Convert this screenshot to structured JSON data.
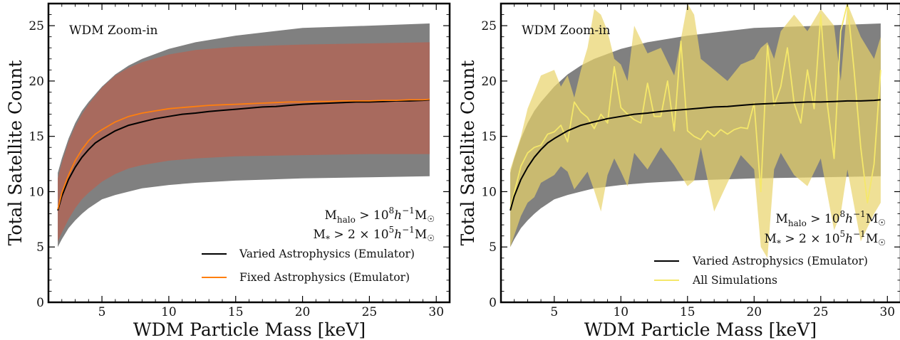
{
  "chart_data": [
    {
      "type": "line",
      "panel_label": "WDM Zoom-in",
      "xlabel": "WDM Particle Mass [keV]",
      "ylabel": "Total Satellite Count",
      "xlim": [
        1,
        31
      ],
      "ylim": [
        0,
        27
      ],
      "xticks": [
        5,
        10,
        15,
        20,
        25,
        30
      ],
      "yticks": [
        0,
        5,
        10,
        15,
        20,
        25
      ],
      "cuts": [
        "Mhalo > 10^8 h^-1 M☉",
        "M* > 2 × 10^5 h^-1 M☉"
      ],
      "legend_position": "lower-right",
      "bands": [
        {
          "color": "#808080",
          "x": [
            1.7,
            2,
            2.5,
            3,
            3.5,
            4,
            5,
            6,
            7,
            8,
            10,
            12,
            15,
            20,
            25,
            29.5
          ],
          "lower": [
            5.0,
            5.7,
            6.7,
            7.4,
            8.0,
            8.5,
            9.3,
            9.7,
            10.0,
            10.3,
            10.6,
            10.8,
            11.0,
            11.2,
            11.3,
            11.4
          ],
          "upper": [
            11.7,
            13.0,
            14.8,
            16.2,
            17.3,
            18.1,
            19.5,
            20.6,
            21.4,
            22.0,
            22.9,
            23.5,
            24.1,
            24.8,
            25.0,
            25.2
          ]
        },
        {
          "color": "#a86a5e",
          "x": [
            1.7,
            2,
            2.5,
            3,
            3.5,
            4,
            5,
            6,
            7,
            8,
            10,
            12,
            15,
            20,
            25,
            29.5
          ],
          "lower": [
            5.5,
            6.3,
            7.5,
            8.5,
            9.3,
            9.9,
            10.9,
            11.6,
            12.1,
            12.4,
            12.8,
            13.0,
            13.2,
            13.3,
            13.4,
            13.4
          ],
          "upper": [
            11.2,
            12.6,
            14.5,
            15.9,
            17.0,
            17.9,
            19.4,
            20.5,
            21.2,
            21.7,
            22.4,
            22.8,
            23.1,
            23.3,
            23.4,
            23.5
          ]
        }
      ],
      "series": [
        {
          "name": "Varied Astrophysics (Emulator)",
          "color": "#000000",
          "x": [
            1.7,
            2,
            2.5,
            3,
            3.5,
            4,
            4.5,
            5,
            6,
            7,
            8,
            9,
            10,
            11,
            12,
            13,
            14,
            15,
            16,
            17,
            18,
            19,
            20,
            21,
            22,
            23,
            24,
            25,
            26,
            27,
            28,
            29,
            29.5
          ],
          "y": [
            8.3,
            9.6,
            11.1,
            12.2,
            13.1,
            13.8,
            14.4,
            14.8,
            15.5,
            16.0,
            16.3,
            16.6,
            16.8,
            17.0,
            17.1,
            17.25,
            17.35,
            17.45,
            17.55,
            17.65,
            17.7,
            17.8,
            17.9,
            17.95,
            18.0,
            18.05,
            18.1,
            18.1,
            18.15,
            18.2,
            18.2,
            18.25,
            18.3
          ]
        },
        {
          "name": "Fixed Astrophysics (Emulator)",
          "color": "#ff7f0e",
          "x": [
            1.7,
            2,
            2.5,
            3,
            3.5,
            4,
            4.5,
            5,
            6,
            7,
            8,
            9,
            10,
            11,
            12,
            13,
            14,
            15,
            16,
            17,
            18,
            19,
            20,
            21,
            22,
            23,
            24,
            25,
            26,
            27,
            28,
            29,
            29.5
          ],
          "y": [
            8.4,
            9.9,
            11.5,
            12.8,
            13.8,
            14.6,
            15.2,
            15.6,
            16.3,
            16.8,
            17.1,
            17.3,
            17.5,
            17.6,
            17.7,
            17.8,
            17.85,
            17.9,
            17.95,
            18.0,
            18.05,
            18.1,
            18.1,
            18.15,
            18.15,
            18.2,
            18.2,
            18.2,
            18.25,
            18.25,
            18.3,
            18.3,
            18.35
          ]
        }
      ]
    },
    {
      "type": "line",
      "panel_label": "WDM Zoom-in",
      "xlabel": "WDM Particle Mass [keV]",
      "ylabel": "Total Satellite Count",
      "xlim": [
        1,
        31
      ],
      "ylim": [
        0,
        27
      ],
      "xticks": [
        5,
        10,
        15,
        20,
        25,
        30
      ],
      "yticks": [
        0,
        5,
        10,
        15,
        20,
        25
      ],
      "cuts": [
        "Mhalo > 10^8 h^-1 M☉",
        "M* > 2 × 10^5 h^-1 M☉"
      ],
      "legend_position": "lower-right",
      "bands": [
        {
          "color": "#808080",
          "x": [
            1.7,
            2,
            2.5,
            3,
            3.5,
            4,
            5,
            6,
            7,
            8,
            10,
            12,
            15,
            20,
            25,
            29.5
          ],
          "lower": [
            5.0,
            5.7,
            6.7,
            7.4,
            8.0,
            8.5,
            9.3,
            9.7,
            10.0,
            10.3,
            10.6,
            10.8,
            11.0,
            11.2,
            11.3,
            11.4
          ],
          "upper": [
            11.7,
            13.0,
            14.8,
            16.2,
            17.3,
            18.1,
            19.5,
            20.6,
            21.4,
            22.0,
            22.9,
            23.5,
            24.1,
            24.8,
            25.0,
            25.2
          ]
        },
        {
          "color": "#e8d36a",
          "x": [
            1.7,
            2.5,
            3,
            3.5,
            4,
            5,
            5.5,
            6,
            6.5,
            7,
            7.5,
            8,
            8.5,
            9,
            9.5,
            10,
            10.5,
            11,
            12,
            13,
            14,
            15,
            15.5,
            16,
            17,
            18,
            19,
            20,
            20.5,
            21,
            21.5,
            22,
            23,
            24,
            25,
            26,
            26.5,
            27,
            28,
            29,
            29.5
          ],
          "lower": [
            5.0,
            7.8,
            9.0,
            9.5,
            10.8,
            11.5,
            12.3,
            11.8,
            10.2,
            11.0,
            11.8,
            10.1,
            8.2,
            11.5,
            13.0,
            11.8,
            10.5,
            13.5,
            12.0,
            14.0,
            12.4,
            10.5,
            11.0,
            14.0,
            8.2,
            10.8,
            13.3,
            12.0,
            5.0,
            4.0,
            12.0,
            13.5,
            11.5,
            10.5,
            13.0,
            6.5,
            8.0,
            12.0,
            5.5,
            8.0,
            9.0
          ],
          "upper": [
            12.0,
            15.0,
            17.5,
            19.0,
            20.5,
            21.0,
            19.5,
            20.5,
            18.5,
            21.0,
            23.0,
            26.5,
            26.0,
            24.5,
            22.0,
            21.5,
            20.0,
            25.0,
            22.5,
            23.0,
            20.5,
            27.0,
            26.0,
            22.0,
            21.0,
            20.0,
            21.5,
            22.0,
            23.0,
            23.5,
            22.0,
            24.5,
            26.0,
            24.5,
            26.5,
            25.0,
            20.0,
            27.0,
            24.0,
            22.0,
            24.0
          ]
        }
      ],
      "series": [
        {
          "name": "Varied Astrophysics (Emulator)",
          "color": "#000000",
          "x": [
            1.7,
            2,
            2.5,
            3,
            3.5,
            4,
            4.5,
            5,
            6,
            7,
            8,
            9,
            10,
            11,
            12,
            13,
            14,
            15,
            16,
            17,
            18,
            19,
            20,
            21,
            22,
            23,
            24,
            25,
            26,
            27,
            28,
            29,
            29.5
          ],
          "y": [
            8.3,
            9.6,
            11.1,
            12.2,
            13.1,
            13.8,
            14.4,
            14.8,
            15.5,
            16.0,
            16.3,
            16.6,
            16.8,
            17.0,
            17.1,
            17.25,
            17.35,
            17.45,
            17.55,
            17.65,
            17.7,
            17.8,
            17.9,
            17.95,
            18.0,
            18.05,
            18.1,
            18.1,
            18.15,
            18.2,
            18.2,
            18.25,
            18.3
          ]
        },
        {
          "name": "All Simulations",
          "color": "#f5e86a",
          "x": [
            1.7,
            2.5,
            3,
            3.5,
            4,
            4.5,
            5,
            5.5,
            6,
            6.5,
            7,
            7.5,
            8,
            8.5,
            9,
            9.5,
            10,
            10.5,
            11,
            11.5,
            12,
            12.5,
            13,
            13.5,
            14,
            14.5,
            15,
            15.5,
            16,
            16.5,
            17,
            17.5,
            18,
            18.5,
            19,
            19.5,
            20,
            20.5,
            21,
            21.5,
            22,
            22.5,
            23,
            23.5,
            24,
            24.5,
            25,
            25.5,
            26,
            26.5,
            27,
            27.5,
            28,
            28.5,
            29,
            29.5
          ],
          "y": [
            8.5,
            12.3,
            13.5,
            14.0,
            14.2,
            15.2,
            15.4,
            16.0,
            14.5,
            18.1,
            17.2,
            16.7,
            15.7,
            17.0,
            16.2,
            21.3,
            17.6,
            17.0,
            16.5,
            16.2,
            19.8,
            16.8,
            16.8,
            20.0,
            15.5,
            23.6,
            15.5,
            15.0,
            14.7,
            15.5,
            15.0,
            15.6,
            15.2,
            15.6,
            15.8,
            15.7,
            18.0,
            10.0,
            23.2,
            17.8,
            19.5,
            23.0,
            18.0,
            16.2,
            21.0,
            17.5,
            26.0,
            17.8,
            13.0,
            24.5,
            27.0,
            21.0,
            14.0,
            9.0,
            12.5,
            21.0
          ]
        }
      ]
    }
  ]
}
